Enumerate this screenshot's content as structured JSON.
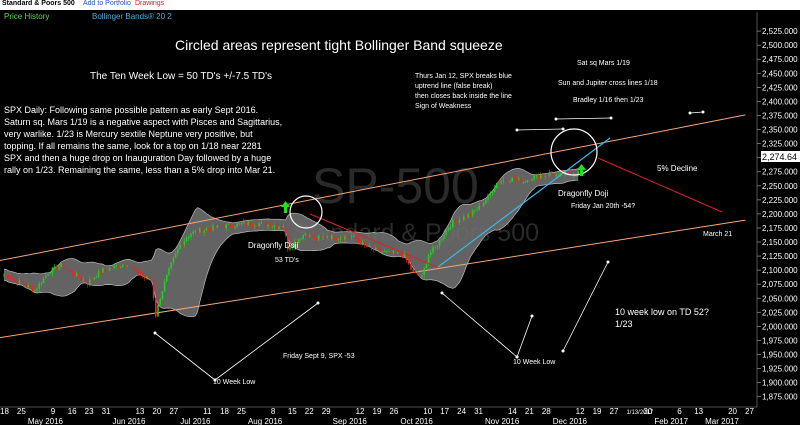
{
  "window": {
    "title": "Standard & Poors 500",
    "add_to_portfolio": "Add to Portfolio",
    "drawings": "Drawings"
  },
  "legend": {
    "price_history": "Price History",
    "bollinger": "Bollinger Bands® 20 2"
  },
  "colors": {
    "up_candle": "#22cc22",
    "down_candle": "#ee2222",
    "band_fill": "#6e6e6e",
    "bb_line": "#bbbbbb",
    "channel": "#f4a67c",
    "trend_cyan": "#33bbee",
    "trend_red": "#dd2222",
    "price_tag": "#ffffff"
  },
  "watermark": {
    "symbol": "SP-500",
    "name": "Standard & Poors 500"
  },
  "chart_data": {
    "type": "candlestick",
    "ylim": [
      1862,
      2543
    ],
    "yticks": [
      "2,525.000",
      "2,500.000",
      "2,475.000",
      "2,450.000",
      "2,425.000",
      "2,400.000",
      "2,375.000",
      "2,350.000",
      "2,325.000",
      "2,300.000",
      "2,275.000",
      "2,250.000",
      "2,225.000",
      "2,200.000",
      "2,175.000",
      "2,150.000",
      "2,125.000",
      "2,100.000",
      "2,075.000",
      "2,050.000",
      "2,025.000",
      "2,000.000",
      "1,975.000",
      "1,950.000",
      "1,925.000",
      "1,900.000",
      "1,875.000"
    ],
    "last_price": "2,274.64",
    "date_ticks": [
      "18",
      "25",
      "May 2016",
      "9",
      "16",
      "23",
      "31",
      "Jun 2016",
      "13",
      "20",
      "27",
      "Jul 2016",
      "11",
      "18",
      "25",
      "Aug 2016",
      "8",
      "15",
      "22",
      "29",
      "Sep 2016",
      "12",
      "19",
      "26",
      "Oct 2016",
      "10",
      "17",
      "24",
      "31",
      "Nov 2016",
      "14",
      "21",
      "28",
      "Dec 2016",
      "12",
      "19",
      "27",
      "1/13/2017",
      "30",
      "Feb 2017",
      "6",
      "13",
      "Mar 2017",
      "20",
      "27"
    ],
    "anchors": [
      {
        "i": 0,
        "v": 2092
      },
      {
        "i": 8,
        "v": 2076
      },
      {
        "i": 14,
        "v": 2064
      },
      {
        "i": 20,
        "v": 2096
      },
      {
        "i": 26,
        "v": 2108
      },
      {
        "i": 32,
        "v": 2092
      },
      {
        "i": 38,
        "v": 2078
      },
      {
        "i": 44,
        "v": 2098
      },
      {
        "i": 50,
        "v": 2106
      },
      {
        "i": 56,
        "v": 2112
      },
      {
        "i": 60,
        "v": 2096
      },
      {
        "i": 64,
        "v": 2086
      },
      {
        "i": 67,
        "v": 2085
      },
      {
        "i": 69,
        "v": 2020
      },
      {
        "i": 71,
        "v": 2052
      },
      {
        "i": 73,
        "v": 2078
      },
      {
        "i": 76,
        "v": 2110
      },
      {
        "i": 80,
        "v": 2145
      },
      {
        "i": 85,
        "v": 2166
      },
      {
        "i": 92,
        "v": 2173
      },
      {
        "i": 100,
        "v": 2178
      },
      {
        "i": 108,
        "v": 2182
      },
      {
        "i": 116,
        "v": 2183
      },
      {
        "i": 124,
        "v": 2178
      },
      {
        "i": 127,
        "v": 2180
      },
      {
        "i": 129,
        "v": 2140
      },
      {
        "i": 133,
        "v": 2152
      },
      {
        "i": 137,
        "v": 2166
      },
      {
        "i": 141,
        "v": 2155
      },
      {
        "i": 146,
        "v": 2160
      },
      {
        "i": 152,
        "v": 2158
      },
      {
        "i": 158,
        "v": 2160
      },
      {
        "i": 164,
        "v": 2143
      },
      {
        "i": 170,
        "v": 2134
      },
      {
        "i": 176,
        "v": 2130
      },
      {
        "i": 182,
        "v": 2126
      },
      {
        "i": 186,
        "v": 2094
      },
      {
        "i": 190,
        "v": 2088
      },
      {
        "i": 193,
        "v": 2128
      },
      {
        "i": 196,
        "v": 2140
      },
      {
        "i": 200,
        "v": 2165
      },
      {
        "i": 204,
        "v": 2186
      },
      {
        "i": 208,
        "v": 2192
      },
      {
        "i": 212,
        "v": 2199
      },
      {
        "i": 216,
        "v": 2212
      },
      {
        "i": 220,
        "v": 2230
      },
      {
        "i": 224,
        "v": 2255
      },
      {
        "i": 228,
        "v": 2261
      },
      {
        "i": 232,
        "v": 2262
      },
      {
        "i": 236,
        "v": 2257
      },
      {
        "i": 240,
        "v": 2265
      },
      {
        "i": 244,
        "v": 2268
      },
      {
        "i": 248,
        "v": 2271
      },
      {
        "i": 252,
        "v": 2268
      },
      {
        "i": 256,
        "v": 2272
      },
      {
        "i": 259,
        "v": 2272
      },
      {
        "i": 261,
        "v": 2275
      }
    ]
  },
  "annotations": {
    "headline": "Circled areas represent tight Bollinger Band squeeze",
    "ten_week_low": "The Ten Week Low = 50 TD's +/-7.5 TD's",
    "daily_lines": [
      "SPX Daily: Following same possible pattern as early Sept 2016.",
      "Saturn sq. Mars 1/19 is a negative aspect with Pisces and Sagittarius,",
      "very warlike. 1/23 is Mercury sextile Neptune very positive, but",
      "topping. If all remains the same, look for a top on 1/18 near 2281",
      "SPX and then a huge drop on Inauguration Day followed by a huge",
      "rally on 1/23.  Remaining the same, less than a 5% drop into Mar 21."
    ],
    "jan12_lines": [
      "Thurs Jan 12, SPX breaks blue",
      "uptrend line (false break)",
      " then closes back inside the line",
      "Sign of Weakness"
    ],
    "sat_sq": "Sat sq Mars 1/19",
    "sun_jupiter": "Sun and Jupiter cross lines 1/18",
    "bradley": "Bradley 1/16 then 1/23",
    "decline": "5% Decline",
    "dragonfly_right": "Dragonfly Doji",
    "friday_jan20": "Friday Jan 20th -54?",
    "march21": "March 21",
    "dragonfly_left": "Dragonfly Doji",
    "td53": "53 TD's",
    "friday_sept9": "Friday Sept 9, SPX -53",
    "low_left": "10 Week Low",
    "low_right": "10 Week Low",
    "td52_lines": [
      "10 week low on TD 52?",
      "1/23"
    ]
  }
}
